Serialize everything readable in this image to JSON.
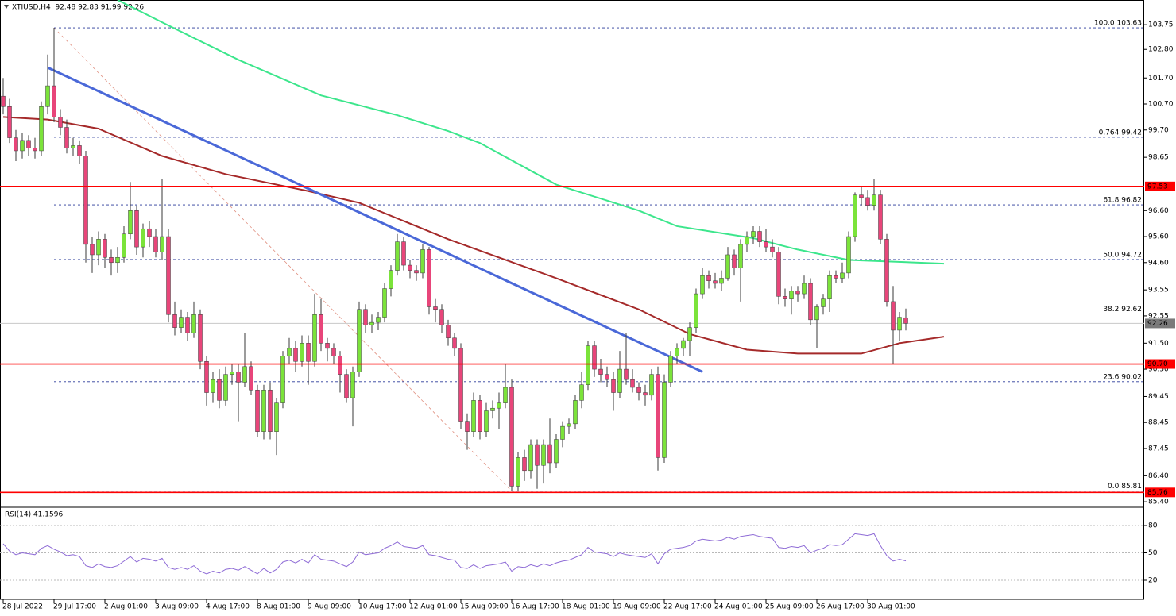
{
  "chart_data": [
    {
      "type": "candlestick",
      "title": "XTIUSD,H4  92.48 92.83 91.99 92.26",
      "up_color": "#7be33a",
      "down_color": "#e8457a",
      "wick_color": "#3a3a3a",
      "ylim": [
        85.22,
        104.7
      ],
      "yticks": [
        103.75,
        {
          "value": 102.8,
          "label": "102.80"
        },
        {
          "value": 101.7,
          "label": "101.70"
        },
        {
          "value": 100.7,
          "label": "100.70"
        },
        {
          "value": 99.7,
          "label": "99.70"
        },
        98.65,
        {
          "value": 96.6,
          "label": "96.60"
        },
        {
          "value": 95.6,
          "label": "95.60"
        },
        {
          "value": 94.6,
          "label": "94.60"
        },
        93.55,
        92.55,
        {
          "value": 91.5,
          "label": "91.50"
        },
        {
          "value": 90.5,
          "label": "90.50"
        },
        89.45,
        88.45,
        87.45,
        {
          "value": 86.4,
          "label": "86.40"
        },
        {
          "value": 85.4,
          "label": "85.40"
        }
      ],
      "grid": false,
      "categories": [
        "28 Jul 2022",
        null,
        null,
        null,
        null,
        null,
        null,
        null,
        "29 Jul 17:00",
        null,
        null,
        null,
        null,
        null,
        null,
        null,
        "2 Aug 01:00",
        null,
        null,
        null,
        null,
        null,
        null,
        null,
        "3 Aug 09:00",
        null,
        null,
        null,
        null,
        null,
        null,
        null,
        "4 Aug 17:00",
        null,
        null,
        null,
        null,
        null,
        null,
        null,
        "8 Aug 01:00",
        null,
        null,
        null,
        null,
        null,
        null,
        null,
        "9 Aug 09:00",
        null,
        null,
        null,
        null,
        null,
        null,
        null,
        "10 Aug 17:00",
        null,
        null,
        null,
        null,
        null,
        null,
        null,
        "12 Aug 01:00",
        null,
        null,
        null,
        null,
        null,
        null,
        null,
        "15 Aug 09:00",
        null,
        null,
        null,
        null,
        null,
        null,
        null,
        "16 Aug 17:00",
        null,
        null,
        null,
        null,
        null,
        null,
        null,
        "18 Aug 01:00",
        null,
        null,
        null,
        null,
        null,
        null,
        null,
        "19 Aug 09:00",
        null,
        null,
        null,
        null,
        null,
        null,
        null,
        "22 Aug 17:00",
        null,
        null,
        null,
        null,
        null,
        null,
        null,
        "24 Aug 01:00",
        null,
        null,
        null,
        null,
        null,
        null,
        null,
        "25 Aug 09:00",
        null,
        null,
        null,
        null,
        null,
        null,
        null,
        "26 Aug 17:00",
        null,
        null,
        null,
        null,
        null,
        null,
        null,
        "30 Aug 01:00",
        null,
        null,
        null,
        null,
        null,
        null
      ],
      "ohlc": [
        [
          101.0,
          101.7,
          100.3,
          100.6
        ],
        [
          100.6,
          100.9,
          99.2,
          99.4
        ],
        [
          99.4,
          99.7,
          98.5,
          98.9
        ],
        [
          98.9,
          99.6,
          98.6,
          99.3
        ],
        [
          99.3,
          99.5,
          98.7,
          99.0
        ],
        [
          99.0,
          99.4,
          98.6,
          98.9
        ],
        [
          98.9,
          100.8,
          98.7,
          100.6
        ],
        [
          100.6,
          102.6,
          100.3,
          101.4
        ],
        [
          101.4,
          103.63,
          100.0,
          100.2
        ],
        [
          100.2,
          100.5,
          99.5,
          99.8
        ],
        [
          99.8,
          100.1,
          98.8,
          99.0
        ],
        [
          99.0,
          99.4,
          98.7,
          99.1
        ],
        [
          99.1,
          99.3,
          98.4,
          98.7
        ],
        [
          98.7,
          98.9,
          94.6,
          95.3
        ],
        [
          95.3,
          95.6,
          94.2,
          94.9
        ],
        [
          94.9,
          95.8,
          94.5,
          95.5
        ],
        [
          95.5,
          95.7,
          94.4,
          94.8
        ],
        [
          94.8,
          95.1,
          94.1,
          94.6
        ],
        [
          94.6,
          95.2,
          94.2,
          94.8
        ],
        [
          94.8,
          96.0,
          94.6,
          95.7
        ],
        [
          95.7,
          97.7,
          95.5,
          96.6
        ],
        [
          96.6,
          96.8,
          94.9,
          95.2
        ],
        [
          95.2,
          96.1,
          94.8,
          95.9
        ],
        [
          95.9,
          96.2,
          95.2,
          95.6
        ],
        [
          95.6,
          95.9,
          94.8,
          95.0
        ],
        [
          95.0,
          97.8,
          94.7,
          95.6
        ],
        [
          95.6,
          95.9,
          92.3,
          92.6
        ],
        [
          92.6,
          93.1,
          91.8,
          92.1
        ],
        [
          92.1,
          92.8,
          91.9,
          92.5
        ],
        [
          92.5,
          92.7,
          91.6,
          91.9
        ],
        [
          91.9,
          93.1,
          91.7,
          92.6
        ],
        [
          92.6,
          92.8,
          90.5,
          90.8
        ],
        [
          90.8,
          91.0,
          89.1,
          89.6
        ],
        [
          89.6,
          90.4,
          89.2,
          90.1
        ],
        [
          90.1,
          90.5,
          89.0,
          89.3
        ],
        [
          89.3,
          90.6,
          89.1,
          90.3
        ],
        [
          90.3,
          90.7,
          89.9,
          90.4
        ],
        [
          90.4,
          90.7,
          88.5,
          90.0
        ],
        [
          90.0,
          91.9,
          89.8,
          90.6
        ],
        [
          90.6,
          90.8,
          89.5,
          89.7
        ],
        [
          89.7,
          89.9,
          87.9,
          88.1
        ],
        [
          88.1,
          89.9,
          87.8,
          89.7
        ],
        [
          89.7,
          90.0,
          87.8,
          88.1
        ],
        [
          88.1,
          89.4,
          87.2,
          89.2
        ],
        [
          89.2,
          91.2,
          89.0,
          91.0
        ],
        [
          91.0,
          91.7,
          90.7,
          91.3
        ],
        [
          91.3,
          91.6,
          90.4,
          90.8
        ],
        [
          90.8,
          91.8,
          90.6,
          91.5
        ],
        [
          91.5,
          91.8,
          89.9,
          90.8
        ],
        [
          90.8,
          93.4,
          90.6,
          92.6
        ],
        [
          92.6,
          93.2,
          91.2,
          91.5
        ],
        [
          91.5,
          91.7,
          90.8,
          91.3
        ],
        [
          91.3,
          91.5,
          90.7,
          91.0
        ],
        [
          91.0,
          91.2,
          89.6,
          90.3
        ],
        [
          90.3,
          90.5,
          89.2,
          89.4
        ],
        [
          89.4,
          90.6,
          88.3,
          90.4
        ],
        [
          90.4,
          93.1,
          90.2,
          92.8
        ],
        [
          92.8,
          93.0,
          91.9,
          92.2
        ],
        [
          92.2,
          92.6,
          91.9,
          92.3
        ],
        [
          92.3,
          92.7,
          92.0,
          92.5
        ],
        [
          92.5,
          93.8,
          92.3,
          93.6
        ],
        [
          93.6,
          94.5,
          93.3,
          94.3
        ],
        [
          94.3,
          95.7,
          94.1,
          95.4
        ],
        [
          95.4,
          95.6,
          94.3,
          94.5
        ],
        [
          94.5,
          94.7,
          94.0,
          94.3
        ],
        [
          94.3,
          94.5,
          93.9,
          94.2
        ],
        [
          94.2,
          95.3,
          94.0,
          95.1
        ],
        [
          95.1,
          95.2,
          92.6,
          92.9
        ],
        [
          92.9,
          93.2,
          92.3,
          92.8
        ],
        [
          92.8,
          93.0,
          91.9,
          92.2
        ],
        [
          92.2,
          92.4,
          91.4,
          91.7
        ],
        [
          91.7,
          91.9,
          91.0,
          91.3
        ],
        [
          91.3,
          91.5,
          88.2,
          88.5
        ],
        [
          88.5,
          88.8,
          87.4,
          88.1
        ],
        [
          88.1,
          89.6,
          87.9,
          89.3
        ],
        [
          89.3,
          89.5,
          87.8,
          88.1
        ],
        [
          88.1,
          89.2,
          87.9,
          88.9
        ],
        [
          88.9,
          89.3,
          88.6,
          89.0
        ],
        [
          89.0,
          89.6,
          88.2,
          89.2
        ],
        [
          89.2,
          90.7,
          89.0,
          89.8
        ],
        [
          89.8,
          90.1,
          85.81,
          86.0
        ],
        [
          86.0,
          87.3,
          85.8,
          87.1
        ],
        [
          87.1,
          87.4,
          86.2,
          86.6
        ],
        [
          86.6,
          87.8,
          86.3,
          87.6
        ],
        [
          87.6,
          87.8,
          85.9,
          86.8
        ],
        [
          86.8,
          87.8,
          86.1,
          87.6
        ],
        [
          87.6,
          88.6,
          86.5,
          86.9
        ],
        [
          86.9,
          88.0,
          86.7,
          87.8
        ],
        [
          87.8,
          88.5,
          87.5,
          88.3
        ],
        [
          88.3,
          88.6,
          88.0,
          88.4
        ],
        [
          88.4,
          89.5,
          88.2,
          89.3
        ],
        [
          89.3,
          90.4,
          89.0,
          89.9
        ],
        [
          89.9,
          91.6,
          89.7,
          91.4
        ],
        [
          91.4,
          91.6,
          90.2,
          90.5
        ],
        [
          90.5,
          90.9,
          90.0,
          90.3
        ],
        [
          90.3,
          90.6,
          89.8,
          90.1
        ],
        [
          90.1,
          90.4,
          88.9,
          89.6
        ],
        [
          89.6,
          91.2,
          89.4,
          90.5
        ],
        [
          90.5,
          91.9,
          89.9,
          90.1
        ],
        [
          90.1,
          90.5,
          89.6,
          89.8
        ],
        [
          89.8,
          90.0,
          89.3,
          89.6
        ],
        [
          89.6,
          89.9,
          89.1,
          89.5
        ],
        [
          89.5,
          90.5,
          89.3,
          90.3
        ],
        [
          90.3,
          90.6,
          86.6,
          87.1
        ],
        [
          87.1,
          90.3,
          86.9,
          90.0
        ],
        [
          90.0,
          91.2,
          89.8,
          91.0
        ],
        [
          91.0,
          91.5,
          90.7,
          91.3
        ],
        [
          91.3,
          91.7,
          91.0,
          91.6
        ],
        [
          91.6,
          92.3,
          91.0,
          92.1
        ],
        [
          92.1,
          93.6,
          91.9,
          93.4
        ],
        [
          93.4,
          94.4,
          93.2,
          94.1
        ],
        [
          94.1,
          94.3,
          93.6,
          93.9
        ],
        [
          93.9,
          94.2,
          93.6,
          93.8
        ],
        [
          93.8,
          94.3,
          93.5,
          94.0
        ],
        [
          94.0,
          95.2,
          93.9,
          94.9
        ],
        [
          94.9,
          95.1,
          94.1,
          94.4
        ],
        [
          94.4,
          95.5,
          93.1,
          95.3
        ],
        [
          95.3,
          95.8,
          95.0,
          95.6
        ],
        [
          95.6,
          96.0,
          95.3,
          95.8
        ],
        [
          95.8,
          96.0,
          95.2,
          95.4
        ],
        [
          95.4,
          95.9,
          95.0,
          95.2
        ],
        [
          95.2,
          95.5,
          94.8,
          95.0
        ],
        [
          95.0,
          95.2,
          93.0,
          93.3
        ],
        [
          93.3,
          93.6,
          92.9,
          93.2
        ],
        [
          93.2,
          93.7,
          92.6,
          93.5
        ],
        [
          93.5,
          93.7,
          93.1,
          93.4
        ],
        [
          93.4,
          94.1,
          93.2,
          93.8
        ],
        [
          93.8,
          94.0,
          92.2,
          92.4
        ],
        [
          92.4,
          93.0,
          91.3,
          92.9
        ],
        [
          92.9,
          93.4,
          92.6,
          93.2
        ],
        [
          93.2,
          94.3,
          92.7,
          94.1
        ],
        [
          94.1,
          94.3,
          93.8,
          94.0
        ],
        [
          94.0,
          94.6,
          93.8,
          94.2
        ],
        [
          94.2,
          95.8,
          94.0,
          95.6
        ],
        [
          95.6,
          97.3,
          95.4,
          97.2
        ],
        [
          97.2,
          97.5,
          96.8,
          97.1
        ],
        [
          97.1,
          97.4,
          96.6,
          96.8
        ],
        [
          96.8,
          97.8,
          96.6,
          97.2
        ],
        [
          97.2,
          97.4,
          95.3,
          95.5
        ],
        [
          95.5,
          95.7,
          92.9,
          93.1
        ],
        [
          93.1,
          93.7,
          90.7,
          92.0
        ],
        [
          92.0,
          92.7,
          91.6,
          92.5
        ],
        [
          92.48,
          92.83,
          91.99,
          92.26
        ]
      ],
      "lines": [
        {
          "color": "#a52a2a",
          "x": [
            0,
            7,
            15,
            25,
            35,
            48,
            56,
            70,
            87,
            100,
            108,
            117,
            125,
            135,
            141,
            148
          ],
          "values": [
            100.2,
            100.1,
            99.75,
            98.7,
            98.0,
            97.35,
            96.9,
            95.5,
            94.0,
            92.8,
            91.85,
            91.25,
            91.1,
            91.1,
            91.5,
            91.75
          ]
        },
        {
          "color": "#3ce68c",
          "x": [
            18,
            25,
            37,
            50,
            62,
            70,
            75,
            87,
            100,
            106,
            118,
            125,
            133,
            148
          ],
          "values": [
            104.7,
            103.84,
            102.4,
            101.03,
            100.27,
            99.66,
            99.2,
            97.6,
            96.6,
            96.0,
            95.54,
            95.1,
            94.7,
            94.56
          ]
        },
        {
          "color": "#4a68d8",
          "x": [
            7,
            110
          ],
          "values": [
            102.1,
            90.4
          ]
        }
      ],
      "levels": [
        97.53,
        {
          "value": 90.7,
          "label": "90.70"
        },
        85.76
      ],
      "level_color": "#ff0000",
      "current_price": 92.26,
      "fib": {
        "color": "#2a3a9a",
        "x": [
          8,
          80
        ],
        "levels": [
          {
            "value": 103.63,
            "label": "100.0 103.63"
          },
          {
            "value": 99.42,
            "label": "0.764 99.42"
          },
          {
            "value": 96.82,
            "label": "61.8 96.82"
          },
          {
            "value": 94.72,
            "label": "50.0 94.72"
          },
          {
            "value": 92.62,
            "label": "38.2 92.62"
          },
          {
            "value": 90.02,
            "label": "23.6 90.02"
          },
          {
            "value": 85.81,
            "label": "0.0 85.81"
          }
        ]
      }
    },
    {
      "type": "line",
      "title": "RSI(14) 41.1596",
      "color": "#8e6bd6",
      "ylim": [
        0,
        100
      ],
      "yticks": [
        20,
        50,
        80
      ],
      "grid": true,
      "values": [
        60,
        52,
        48,
        50,
        49,
        48,
        55,
        58,
        54,
        51,
        47,
        48,
        46,
        36,
        34,
        38,
        35,
        34,
        36,
        41,
        46,
        40,
        44,
        43,
        41,
        44,
        34,
        32,
        34,
        32,
        36,
        30,
        27,
        30,
        28,
        32,
        33,
        31,
        35,
        31,
        27,
        33,
        28,
        32,
        40,
        42,
        39,
        43,
        39,
        48,
        43,
        42,
        41,
        38,
        35,
        40,
        51,
        48,
        49,
        50,
        55,
        58,
        62,
        57,
        56,
        55,
        58,
        48,
        47,
        45,
        43,
        42,
        34,
        33,
        37,
        33,
        36,
        37,
        38,
        40,
        30,
        35,
        34,
        37,
        35,
        38,
        36,
        39,
        41,
        42,
        45,
        48,
        56,
        51,
        50,
        49,
        46,
        50,
        48,
        47,
        46,
        45,
        49,
        38,
        49,
        54,
        55,
        56,
        58,
        63,
        65,
        64,
        63,
        64,
        67,
        65,
        68,
        69,
        70,
        68,
        67,
        66,
        56,
        55,
        57,
        56,
        58,
        50,
        53,
        55,
        59,
        58,
        59,
        65,
        71,
        70,
        69,
        71,
        58,
        47,
        41,
        43,
        41.1596
      ]
    }
  ]
}
